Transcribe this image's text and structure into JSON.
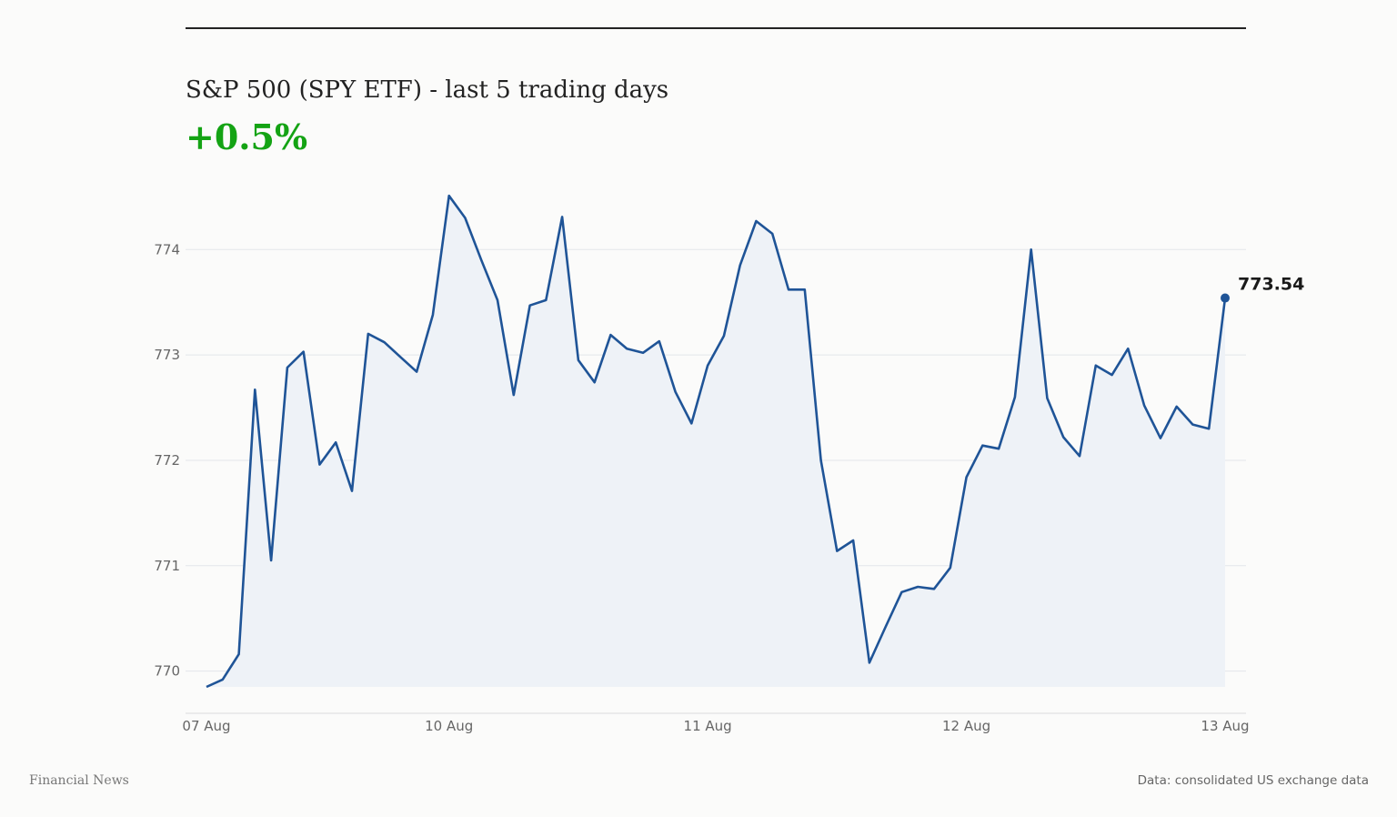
{
  "header": {
    "title": "S&P 500 (SPY ETF) - last 5 trading days",
    "change": "+0.5%"
  },
  "footer": {
    "source_left": "Financial News",
    "source_right": "Data: consolidated US exchange data"
  },
  "colors": {
    "line": "#1f5497",
    "area": "#eef2f7",
    "positive": "#14a314",
    "grid": "#e3e6ea"
  },
  "chart_data": {
    "type": "area",
    "ylim": [
      769.6,
      774.9
    ],
    "yticks": [
      770,
      771,
      772,
      773,
      774
    ],
    "xtick_labels": [
      "07 Aug",
      "10 Aug",
      "11 Aug",
      "12 Aug",
      "13 Aug"
    ],
    "xtick_positions": [
      0,
      15,
      31,
      47,
      63
    ],
    "grid": true,
    "last_value_label": "773.54",
    "series": [
      {
        "values": [
          769.85,
          769.92,
          770.16,
          772.67,
          771.05,
          772.88,
          773.03,
          771.96,
          772.17,
          771.71,
          773.2,
          773.12,
          772.98,
          772.84,
          773.38,
          774.51,
          774.3,
          773.9,
          773.52,
          772.62,
          773.47,
          773.52,
          774.31,
          772.95,
          772.74,
          773.19,
          773.06,
          773.02,
          773.13,
          772.65,
          772.35,
          772.9,
          773.18,
          773.85,
          774.27,
          774.15,
          773.62,
          773.62,
          772.0,
          771.14,
          771.24,
          770.08,
          770.42,
          770.75,
          770.8,
          770.78,
          770.98,
          771.84,
          772.14,
          772.11,
          772.6,
          774.0,
          772.59,
          772.22,
          772.04,
          772.9,
          772.81,
          773.06,
          772.52,
          772.21,
          772.51,
          772.34,
          772.3,
          773.54
        ]
      }
    ]
  }
}
